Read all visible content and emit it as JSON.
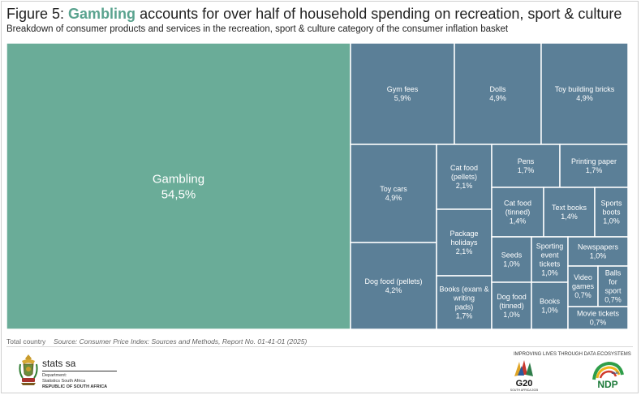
{
  "header": {
    "title_prefix": "Figure 5: ",
    "title_highlight": "Gambling",
    "title_rest": " accounts for over half of household spending on recreation, sport & culture",
    "subtitle": "Breakdown of consumer products and services in the recreation, sport & culture category of the consumer inflation basket"
  },
  "colors": {
    "gambling": "#6aac98",
    "other": "#5b7f97",
    "highlight_text": "#5aa38f"
  },
  "chart_data": {
    "type": "treemap",
    "title": "Figure 5: Gambling accounts for over half of household spending on recreation, sport & culture",
    "subtitle": "Breakdown of consumer products and services in the recreation, sport & culture category of the consumer inflation basket",
    "unit": "%",
    "items": [
      {
        "label": "Gambling",
        "value": 54.5,
        "display": "54,5%"
      },
      {
        "label": "Gym fees",
        "value": 5.9,
        "display": "5,9%"
      },
      {
        "label": "Dolls",
        "value": 4.9,
        "display": "4,9%"
      },
      {
        "label": "Toy building bricks",
        "value": 4.9,
        "display": "4,9%"
      },
      {
        "label": "Toy cars",
        "value": 4.9,
        "display": "4,9%"
      },
      {
        "label": "Dog food (pellets)",
        "value": 4.2,
        "display": "4,2%"
      },
      {
        "label": "Cat food (pellets)",
        "value": 2.1,
        "display": "2,1%"
      },
      {
        "label": "Package holidays",
        "value": 2.1,
        "display": "2,1%"
      },
      {
        "label": "Books (exam & writing pads)",
        "value": 1.7,
        "display": "1,7%"
      },
      {
        "label": "Pens",
        "value": 1.7,
        "display": "1,7%"
      },
      {
        "label": "Printing paper",
        "value": 1.7,
        "display": "1,7%"
      },
      {
        "label": "Cat food (tinned)",
        "value": 1.4,
        "display": "1,4%"
      },
      {
        "label": "Text books",
        "value": 1.4,
        "display": "1,4%"
      },
      {
        "label": "Sports boots",
        "value": 1.0,
        "display": "1,0%"
      },
      {
        "label": "Seeds",
        "value": 1.0,
        "display": "1,0%"
      },
      {
        "label": "Sporting event tickets",
        "value": 1.0,
        "display": "1,0%"
      },
      {
        "label": "Newspapers",
        "value": 1.0,
        "display": "1,0%"
      },
      {
        "label": "Dog food (tinned)",
        "value": 1.0,
        "display": "1,0%"
      },
      {
        "label": "Books",
        "value": 1.0,
        "display": "1,0%"
      },
      {
        "label": "Video games",
        "value": 0.7,
        "display": "0,7%"
      },
      {
        "label": "Balls for sport",
        "value": 0.7,
        "display": "0,7%"
      },
      {
        "label": "Movie tickets",
        "value": 0.7,
        "display": "0,7%"
      }
    ]
  },
  "footer": {
    "note": "Total country",
    "source": "Source: Consumer Price Index: Sources and Methods, Report No. 01-41-01 (2025)",
    "org_name": "stats sa",
    "org_lines": [
      "Department:",
      "Statistics South Africa",
      "REPUBLIC OF SOUTH AFRICA"
    ],
    "tagline": "IMPROVING LIVES THROUGH DATA ECOSYSTEMS",
    "g20_text": "G20",
    "g20_sub": "SOUTH AFRICA 2025",
    "ndp_text": "NDP",
    "ndp_year": "2030"
  }
}
